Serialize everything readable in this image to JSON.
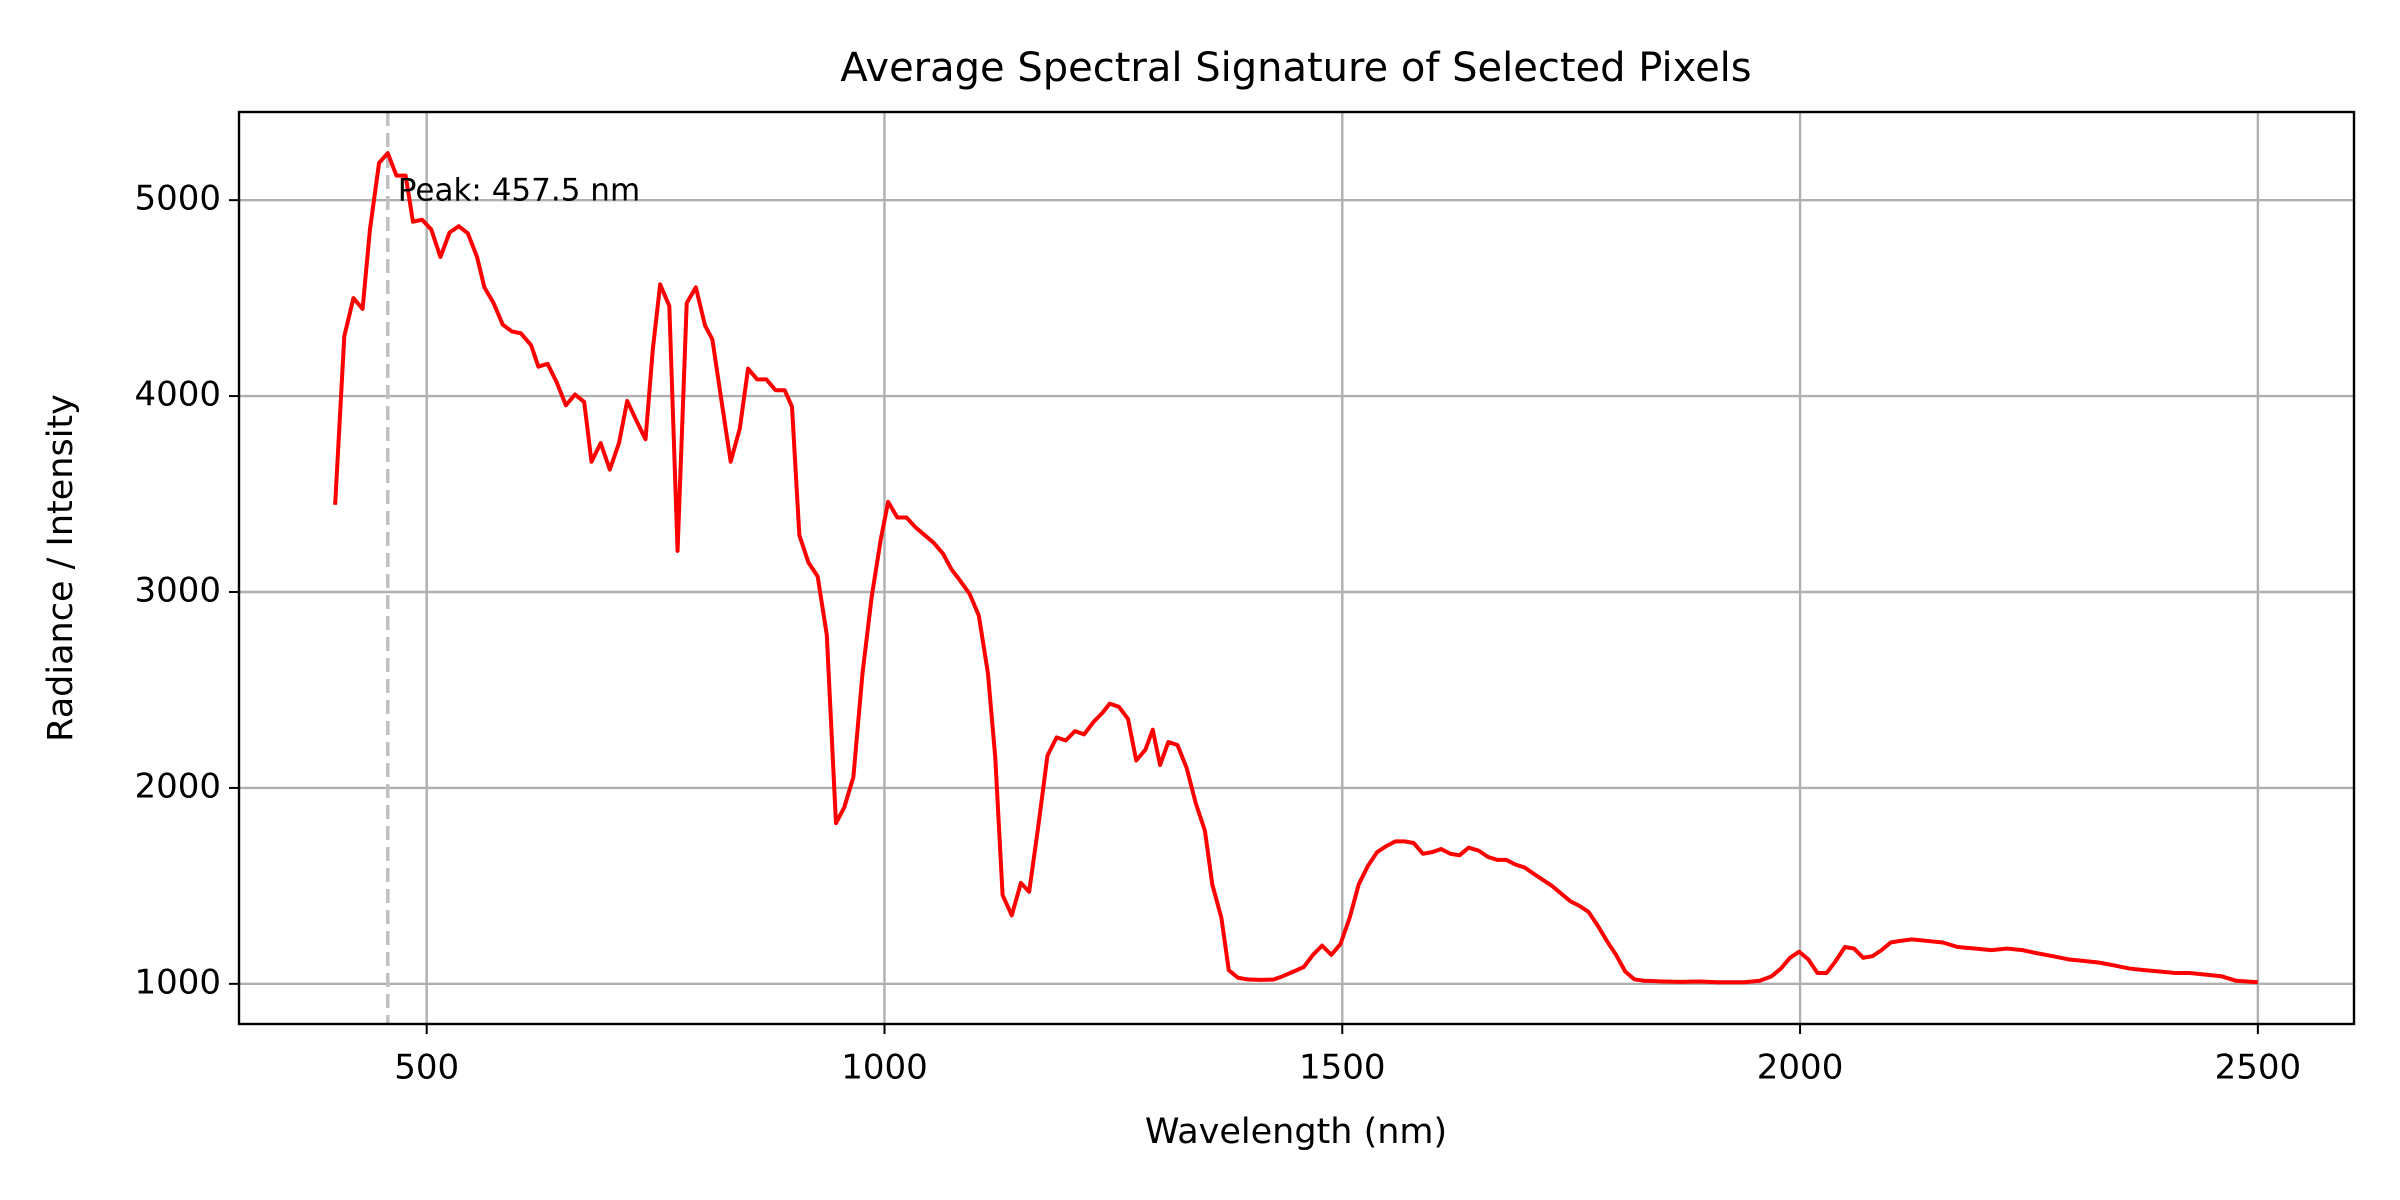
{
  "chart_data": {
    "type": "line",
    "title": "Average Spectral Signature of Selected Pixels",
    "x_label": "Wavelength (nm)",
    "y_label": "Radiance / Intensity",
    "color": "#ff0000",
    "grid": true,
    "xlim": [
      295,
      2605
    ],
    "ylim": [
      795,
      5450
    ],
    "xticks": [
      500,
      1000,
      1500,
      2000,
      2500
    ],
    "yticks": [
      1000,
      2000,
      3000,
      4000,
      5000
    ],
    "vline": {
      "x": 457.5,
      "color": "#c0c0c0"
    },
    "annotation": "Peak: 457.5 nm",
    "x": [
      400,
      410,
      420,
      430,
      438,
      448,
      457.5,
      467,
      477,
      485,
      495,
      505,
      515,
      525,
      535,
      545,
      555,
      563,
      573,
      583,
      593,
      603,
      614,
      622,
      632,
      642,
      652,
      662,
      672,
      680,
      690,
      700,
      710,
      719,
      729,
      739,
      747,
      755,
      765,
      774,
      784,
      794,
      804,
      812,
      822,
      832,
      842,
      851,
      861,
      871,
      881,
      891,
      899,
      907,
      917,
      927,
      937,
      947,
      956,
      966,
      976,
      986,
      996,
      1004,
      1014,
      1024,
      1034,
      1044,
      1054,
      1064,
      1073,
      1083,
      1093,
      1103,
      1113,
      1121,
      1129,
      1139,
      1149,
      1158,
      1168,
      1178,
      1188,
      1198,
      1208,
      1218,
      1228,
      1238,
      1246,
      1256,
      1266,
      1275,
      1285,
      1293,
      1301,
      1310,
      1320,
      1330,
      1340,
      1350,
      1358,
      1368,
      1376,
      1386,
      1396,
      1410,
      1425,
      1435,
      1447,
      1458,
      1468,
      1478,
      1488,
      1498,
      1508,
      1518,
      1528,
      1538,
      1548,
      1558,
      1568,
      1578,
      1588,
      1598,
      1608,
      1618,
      1628,
      1638,
      1649,
      1659,
      1669,
      1679,
      1689,
      1699,
      1709,
      1719,
      1729,
      1739,
      1749,
      1759,
      1769,
      1779,
      1789,
      1799,
      1809,
      1819,
      1829,
      1850,
      1870,
      1890,
      1910,
      1939,
      1956,
      1969,
      1979,
      1989,
      1999,
      2009,
      2019,
      2029,
      2039,
      2049,
      2059,
      2069,
      2079,
      2089,
      2099,
      2109,
      2122,
      2139,
      2156,
      2172,
      2192,
      2209,
      2226,
      2243,
      2259,
      2276,
      2293,
      2309,
      2326,
      2343,
      2360,
      2376,
      2393,
      2410,
      2426,
      2443,
      2460,
      2476,
      2500
    ],
    "values": [
      3445,
      4305,
      4500,
      4445,
      4850,
      5190,
      5240,
      5125,
      5125,
      4890,
      4900,
      4850,
      4710,
      4835,
      4867,
      4830,
      4710,
      4555,
      4475,
      4365,
      4330,
      4320,
      4260,
      4150,
      4165,
      4070,
      3953,
      4008,
      3970,
      3665,
      3760,
      3625,
      3760,
      3975,
      3875,
      3780,
      4240,
      4570,
      4460,
      3210,
      4475,
      4555,
      4360,
      4290,
      3975,
      3665,
      3835,
      4140,
      4085,
      4085,
      4030,
      4030,
      3945,
      3290,
      3150,
      3080,
      2780,
      1820,
      1900,
      2055,
      2585,
      2975,
      3270,
      3460,
      3380,
      3380,
      3330,
      3290,
      3250,
      3195,
      3117,
      3055,
      2990,
      2880,
      2585,
      2155,
      1453,
      1350,
      1515,
      1470,
      1805,
      2165,
      2258,
      2242,
      2290,
      2273,
      2335,
      2383,
      2430,
      2414,
      2352,
      2140,
      2195,
      2297,
      2117,
      2234,
      2219,
      2102,
      1922,
      1781,
      1508,
      1336,
      1070,
      1031,
      1023,
      1020,
      1022,
      1039,
      1063,
      1086,
      1148,
      1195,
      1148,
      1203,
      1336,
      1508,
      1602,
      1672,
      1703,
      1727,
      1727,
      1719,
      1664,
      1672,
      1688,
      1664,
      1656,
      1695,
      1680,
      1648,
      1633,
      1633,
      1609,
      1594,
      1562,
      1531,
      1500,
      1461,
      1422,
      1398,
      1367,
      1297,
      1219,
      1148,
      1063,
      1023,
      1016,
      1012,
      1010,
      1012,
      1008,
      1008,
      1016,
      1039,
      1078,
      1133,
      1164,
      1125,
      1055,
      1055,
      1117,
      1188,
      1180,
      1133,
      1141,
      1172,
      1211,
      1219,
      1227,
      1219,
      1211,
      1188,
      1180,
      1172,
      1180,
      1172,
      1156,
      1141,
      1125,
      1117,
      1109,
      1094,
      1078,
      1070,
      1063,
      1055,
      1055,
      1047,
      1039,
      1016,
      1008
    ]
  }
}
